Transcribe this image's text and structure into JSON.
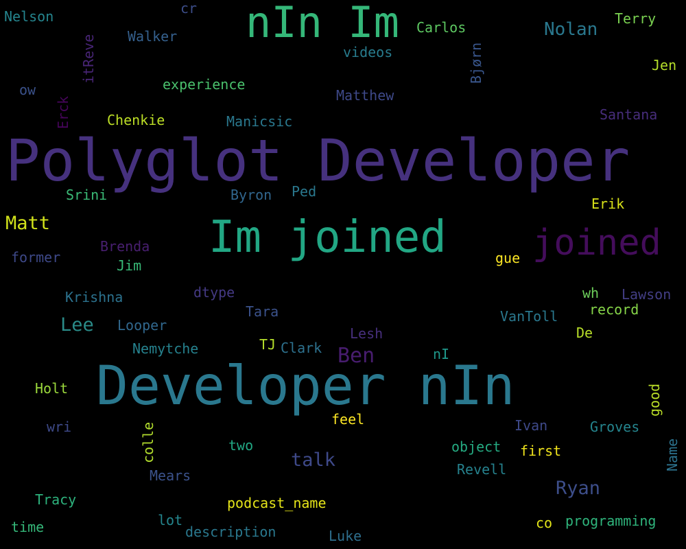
{
  "words": [
    {
      "text": "Polyglot Developer",
      "color": "#46317e"
    },
    {
      "text": "Developer nIn",
      "color": "#2a788e"
    },
    {
      "text": "Im joined",
      "color": "#22a784"
    },
    {
      "text": "nIn Im",
      "color": "#35b779"
    },
    {
      "text": "joined",
      "color": "#440d5b"
    },
    {
      "text": "Matt",
      "color": "#d2e21b"
    },
    {
      "text": "Lee",
      "color": "#2a8b88"
    },
    {
      "text": "Ben",
      "color": "#481d6f"
    },
    {
      "text": "Ryan",
      "color": "#3d4e8a"
    },
    {
      "text": "talk",
      "color": "#3e4989"
    },
    {
      "text": "Nolan",
      "color": "#2a788e"
    },
    {
      "text": "Nelson",
      "color": "#25858e"
    },
    {
      "text": "cr",
      "color": "#3d4e8a"
    },
    {
      "text": "Walker",
      "color": "#35608d"
    },
    {
      "text": "Carlos",
      "color": "#5ec962"
    },
    {
      "text": "Terry",
      "color": "#7ad151"
    },
    {
      "text": "videos",
      "color": "#287c8e"
    },
    {
      "text": "Jen",
      "color": "#b5de2b"
    },
    {
      "text": "ow",
      "color": "#3b528b"
    },
    {
      "text": "experience",
      "color": "#4ac16d"
    },
    {
      "text": "Matthew",
      "color": "#3e4989"
    },
    {
      "text": "Chenkie",
      "color": "#bddf26"
    },
    {
      "text": "Manicsic",
      "color": "#2a788e"
    },
    {
      "text": "Santana",
      "color": "#472d7b"
    },
    {
      "text": "Srini",
      "color": "#3aba76"
    },
    {
      "text": "Byron",
      "color": "#31668e"
    },
    {
      "text": "Ped",
      "color": "#2a788e"
    },
    {
      "text": "Erik",
      "color": "#d8e219"
    },
    {
      "text": "Brenda",
      "color": "#481f70"
    },
    {
      "text": "former",
      "color": "#3e4989"
    },
    {
      "text": "Jim",
      "color": "#38b977"
    },
    {
      "text": "gue",
      "color": "#fde725"
    },
    {
      "text": "dtype",
      "color": "#443983"
    },
    {
      "text": "wh",
      "color": "#6ccd5a"
    },
    {
      "text": "Lawson",
      "color": "#433e85"
    },
    {
      "text": "Krishna",
      "color": "#2c728e"
    },
    {
      "text": "Tara",
      "color": "#3b528b"
    },
    {
      "text": "record",
      "color": "#86d549"
    },
    {
      "text": "Looper",
      "color": "#31688e"
    },
    {
      "text": "VanToll",
      "color": "#2a788e"
    },
    {
      "text": "De",
      "color": "#b8de29"
    },
    {
      "text": "Lesh",
      "color": "#472f7d"
    },
    {
      "text": "Nemytche",
      "color": "#26828e"
    },
    {
      "text": "TJ",
      "color": "#b5de2b"
    },
    {
      "text": "Clark",
      "color": "#2d718e"
    },
    {
      "text": "nI",
      "color": "#1f988b"
    },
    {
      "text": "Holt",
      "color": "#9bd93c"
    },
    {
      "text": "feel",
      "color": "#fde725"
    },
    {
      "text": "wri",
      "color": "#3e4a89"
    },
    {
      "text": "Ivan",
      "color": "#3e4989"
    },
    {
      "text": "Groves",
      "color": "#25858e"
    },
    {
      "text": "two",
      "color": "#22a884"
    },
    {
      "text": "object",
      "color": "#25ab82"
    },
    {
      "text": "first",
      "color": "#f1e51d"
    },
    {
      "text": "Mears",
      "color": "#3b528b"
    },
    {
      "text": "Revell",
      "color": "#26828e"
    },
    {
      "text": "Tracy",
      "color": "#2db27d"
    },
    {
      "text": "podcast_name",
      "color": "#e5e419"
    },
    {
      "text": "lot",
      "color": "#24868e"
    },
    {
      "text": "time",
      "color": "#35b779"
    },
    {
      "text": "description",
      "color": "#2a788e"
    },
    {
      "text": "Luke",
      "color": "#2e6f8e"
    },
    {
      "text": "co",
      "color": "#e2e418"
    },
    {
      "text": "programming",
      "color": "#2fb47c"
    },
    {
      "text": "Bjørn",
      "color": "#39568c"
    },
    {
      "text": "itReve",
      "color": "#482576"
    },
    {
      "text": "Erck",
      "color": "#450559"
    },
    {
      "text": "colle",
      "color": "#b2dd2d"
    },
    {
      "text": "good",
      "color": "#bade28"
    },
    {
      "text": "Name",
      "color": "#2c728e"
    }
  ]
}
